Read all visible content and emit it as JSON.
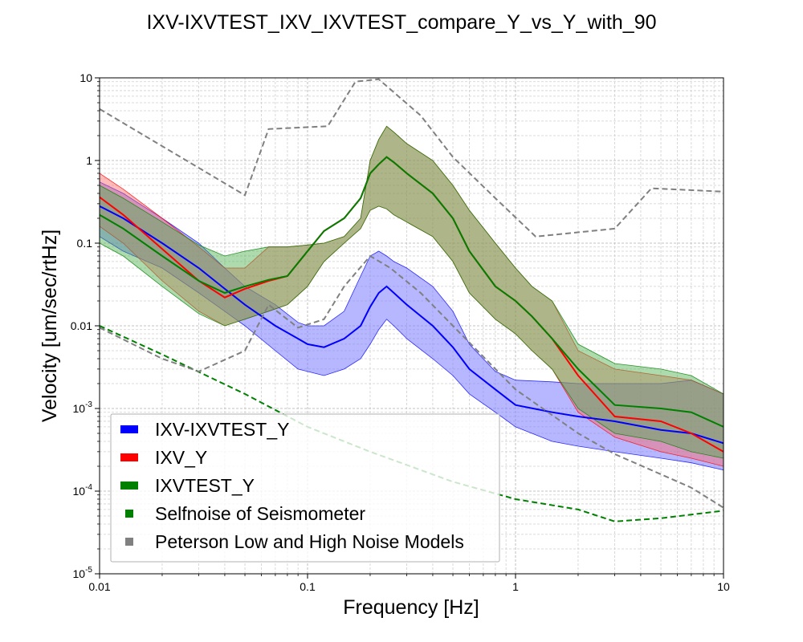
{
  "chart_data": {
    "type": "line",
    "title": "IXV-IXVTEST_IXV_IXVTEST_compare_Y_vs_Y_with_90",
    "xlabel": "Frequency [Hz]",
    "ylabel": "Velocity [um/sec/rtHz]",
    "xscale": "log",
    "yscale": "log",
    "xlim": [
      0.01,
      10
    ],
    "ylim": [
      1e-05,
      10
    ],
    "grid": true,
    "legend_position": "lower-left",
    "x_ticks": [
      {
        "value": 0.01,
        "label": "0.01"
      },
      {
        "value": 0.1,
        "label": "0.1"
      },
      {
        "value": 1,
        "label": "1"
      },
      {
        "value": 10,
        "label": "10"
      }
    ],
    "y_ticks": [
      {
        "value": 1e-05,
        "base": "10",
        "exp": "-5",
        "label": ""
      },
      {
        "value": 0.0001,
        "base": "10",
        "exp": "-4",
        "label": ""
      },
      {
        "value": 0.001,
        "base": "10",
        "exp": "-3",
        "label": ""
      },
      {
        "value": 0.01,
        "base": "",
        "exp": "",
        "label": "0.01"
      },
      {
        "value": 0.1,
        "base": "",
        "exp": "",
        "label": "0.1"
      },
      {
        "value": 1,
        "base": "",
        "exp": "",
        "label": "1"
      },
      {
        "value": 10,
        "base": "",
        "exp": "",
        "label": "10"
      }
    ],
    "series": [
      {
        "name": "IXV-IXVTEST_Y",
        "color": "#0000ff",
        "band_color": "#7b7bff",
        "x": [
          0.01,
          0.013,
          0.02,
          0.03,
          0.04,
          0.05,
          0.07,
          0.09,
          0.1,
          0.12,
          0.15,
          0.18,
          0.2,
          0.22,
          0.24,
          0.26,
          0.3,
          0.4,
          0.5,
          0.6,
          0.8,
          1.0,
          1.5,
          2.0,
          3.0,
          5.0,
          7.0,
          10.0
        ],
        "median": [
          0.28,
          0.2,
          0.1,
          0.05,
          0.028,
          0.018,
          0.01,
          0.007,
          0.006,
          0.0055,
          0.007,
          0.01,
          0.017,
          0.025,
          0.03,
          0.025,
          0.018,
          0.01,
          0.0055,
          0.003,
          0.0017,
          0.0011,
          0.0009,
          0.0008,
          0.0007,
          0.00055,
          0.0005,
          0.00038
        ],
        "upper": [
          0.55,
          0.4,
          0.2,
          0.1,
          0.05,
          0.03,
          0.018,
          0.011,
          0.01,
          0.01,
          0.015,
          0.04,
          0.07,
          0.08,
          0.07,
          0.06,
          0.05,
          0.03,
          0.015,
          0.006,
          0.0028,
          0.0022,
          0.0021,
          0.002,
          0.002,
          0.002,
          0.0022,
          0.0015
        ],
        "lower": [
          0.12,
          0.08,
          0.05,
          0.025,
          0.015,
          0.01,
          0.005,
          0.003,
          0.0028,
          0.0025,
          0.003,
          0.004,
          0.006,
          0.009,
          0.012,
          0.01,
          0.007,
          0.004,
          0.0025,
          0.0015,
          0.0009,
          0.0006,
          0.0004,
          0.00035,
          0.0003,
          0.00025,
          0.00022,
          0.00018
        ]
      },
      {
        "name": "IXV_Y",
        "color": "#ff0000",
        "band_color": "#ff6666",
        "x": [
          0.01,
          0.013,
          0.02,
          0.03,
          0.04,
          0.05,
          0.065,
          0.08,
          0.1,
          0.12,
          0.15,
          0.18,
          0.2,
          0.22,
          0.24,
          0.26,
          0.3,
          0.4,
          0.5,
          0.6,
          0.8,
          1.0,
          1.2,
          1.5,
          2.0,
          3.0,
          5.0,
          7.0,
          10.0
        ],
        "median": [
          0.36,
          0.22,
          0.085,
          0.035,
          0.022,
          0.028,
          0.035,
          0.04,
          0.08,
          0.14,
          0.2,
          0.35,
          0.7,
          0.9,
          1.1,
          0.95,
          0.7,
          0.4,
          0.2,
          0.08,
          0.03,
          0.02,
          0.013,
          0.007,
          0.0025,
          0.0008,
          0.0007,
          0.0005,
          0.0003
        ],
        "upper": [
          0.7,
          0.45,
          0.2,
          0.09,
          0.05,
          0.05,
          0.09,
          0.09,
          0.095,
          0.1,
          0.12,
          0.2,
          1.0,
          1.8,
          2.6,
          2.2,
          1.6,
          1.0,
          0.5,
          0.25,
          0.1,
          0.05,
          0.03,
          0.02,
          0.005,
          0.003,
          0.0025,
          0.0022,
          0.0015
        ],
        "lower": [
          0.16,
          0.1,
          0.035,
          0.015,
          0.01,
          0.012,
          0.015,
          0.018,
          0.03,
          0.06,
          0.1,
          0.15,
          0.25,
          0.28,
          0.26,
          0.22,
          0.18,
          0.12,
          0.06,
          0.025,
          0.012,
          0.008,
          0.005,
          0.003,
          0.0009,
          0.00045,
          0.0003,
          0.00025,
          0.0002
        ]
      },
      {
        "name": "IXVTEST_Y",
        "color": "#008000",
        "band_color": "#4cb04c",
        "x": [
          0.01,
          0.013,
          0.02,
          0.03,
          0.04,
          0.05,
          0.065,
          0.08,
          0.1,
          0.12,
          0.15,
          0.18,
          0.2,
          0.22,
          0.24,
          0.26,
          0.3,
          0.4,
          0.5,
          0.6,
          0.8,
          1.0,
          1.2,
          1.5,
          2.0,
          3.0,
          5.0,
          7.0,
          10.0
        ],
        "median": [
          0.22,
          0.15,
          0.07,
          0.035,
          0.025,
          0.03,
          0.036,
          0.04,
          0.08,
          0.14,
          0.2,
          0.35,
          0.7,
          0.9,
          1.1,
          0.95,
          0.7,
          0.4,
          0.2,
          0.08,
          0.03,
          0.02,
          0.013,
          0.007,
          0.003,
          0.0011,
          0.001,
          0.0009,
          0.0006
        ],
        "upper": [
          0.5,
          0.35,
          0.18,
          0.095,
          0.07,
          0.08,
          0.09,
          0.09,
          0.095,
          0.1,
          0.12,
          0.2,
          1.0,
          1.8,
          2.6,
          2.2,
          1.6,
          1.0,
          0.5,
          0.25,
          0.1,
          0.05,
          0.03,
          0.02,
          0.006,
          0.0035,
          0.003,
          0.0025,
          0.0015
        ],
        "lower": [
          0.1,
          0.07,
          0.03,
          0.014,
          0.01,
          0.012,
          0.015,
          0.018,
          0.03,
          0.06,
          0.1,
          0.15,
          0.25,
          0.28,
          0.26,
          0.22,
          0.18,
          0.12,
          0.06,
          0.025,
          0.012,
          0.008,
          0.005,
          0.003,
          0.001,
          0.0005,
          0.0004,
          0.0003,
          0.00025
        ]
      },
      {
        "name": "Selfnoise of Seismometer",
        "color": "#008000",
        "dashed": true,
        "x": [
          0.01,
          0.02,
          0.05,
          0.1,
          0.2,
          0.5,
          1.0,
          2.0,
          3.0,
          5.0,
          10.0
        ],
        "values": [
          0.01,
          0.0045,
          0.0015,
          0.0006,
          0.0003,
          0.00013,
          8e-05,
          6e-05,
          4.3e-05,
          4.7e-05,
          5.8e-05
        ]
      },
      {
        "name": "Peterson Low and High Noise Models",
        "color": "#808080",
        "dashed": true,
        "lines": [
          {
            "x": [
              0.01,
              0.05,
              0.065,
              0.125,
              0.17,
              0.22,
              0.35,
              0.5,
              0.8,
              1.25,
              3.0,
              4.5,
              10.0
            ],
            "values": [
              4.2,
              0.38,
              2.4,
              2.6,
              9.0,
              9.6,
              3.5,
              1.1,
              0.35,
              0.12,
              0.15,
              0.46,
              0.42
            ]
          },
          {
            "x": [
              0.01,
              0.02,
              0.03,
              0.05,
              0.065,
              0.09,
              0.12,
              0.15,
              0.2,
              0.25,
              0.35,
              0.5,
              1.0,
              2.0,
              3.0,
              5.0,
              7.0,
              10.0
            ],
            "values": [
              0.0095,
              0.004,
              0.0028,
              0.005,
              0.018,
              0.0095,
              0.012,
              0.03,
              0.07,
              0.05,
              0.025,
              0.01,
              0.0017,
              0.0005,
              0.00028,
              0.00016,
              0.00011,
              6.3e-05
            ]
          }
        ]
      }
    ]
  },
  "legend": [
    {
      "label": "IXV-IXVTEST_Y",
      "color": "#0000ff",
      "style": "bar"
    },
    {
      "label": "IXV_Y",
      "color": "#ff0000",
      "style": "bar"
    },
    {
      "label": "IXVTEST_Y",
      "color": "#008000",
      "style": "bar"
    },
    {
      "label": "Selfnoise of Seismometer",
      "color": "#008000",
      "style": "dash"
    },
    {
      "label": "Peterson Low and High Noise Models",
      "color": "#808080",
      "style": "dash"
    }
  ]
}
